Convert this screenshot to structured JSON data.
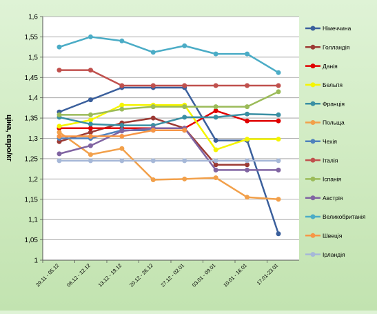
{
  "chart_data": {
    "type": "line",
    "title": "",
    "xlabel": "",
    "ylabel": "ціна, євро/кг",
    "ylim": [
      1,
      1.6
    ],
    "ytick_step": 0.05,
    "yticks": [
      "1",
      "1,05",
      "1,1",
      "1,15",
      "1,2",
      "1,25",
      "1,3",
      "1,35",
      "1,4",
      "1,45",
      "1,5",
      "1,55",
      "1,6"
    ],
    "grid": true,
    "legend_position": "right",
    "categories": [
      "29.11 - 05.12",
      "06.12 - 12.12",
      "13.12 - 19.12",
      "20.12 - 26.12",
      "27.12 - 02.01",
      "03.01 - 09.01",
      "10.01 - 16.01",
      "17.01-23.01"
    ],
    "series": [
      {
        "name": "Німеччина",
        "color": "#3a5f9c",
        "values": [
          1.365,
          1.395,
          1.425,
          1.425,
          1.425,
          1.295,
          1.295,
          1.065
        ]
      },
      {
        "name": "Голландія",
        "color": "#9c3a34",
        "values": [
          1.292,
          1.315,
          1.338,
          1.35,
          1.325,
          1.235,
          1.235,
          null
        ]
      },
      {
        "name": "Данія",
        "color": "#e00000",
        "values": [
          1.325,
          1.325,
          1.325,
          1.325,
          1.325,
          1.368,
          1.343,
          1.343
        ]
      },
      {
        "name": "Бельгія",
        "color": "#f5f500",
        "values": [
          1.33,
          1.345,
          1.382,
          1.382,
          1.382,
          1.272,
          1.298,
          1.298
        ]
      },
      {
        "name": "Франція",
        "color": "#3a8fa3",
        "values": [
          1.352,
          1.335,
          1.332,
          1.332,
          1.352,
          1.352,
          1.36,
          1.358
        ]
      },
      {
        "name": "Польща",
        "color": "#f2a04a",
        "values": [
          1.315,
          1.26,
          1.275,
          1.198,
          1.2,
          1.203,
          1.155,
          1.15
        ]
      },
      {
        "name": "Чехія",
        "color": "#4f81bd",
        "values": [
          1.3,
          1.3,
          1.32,
          1.32,
          1.32,
          null,
          null,
          null
        ]
      },
      {
        "name": "Італія",
        "color": "#c0504d",
        "values": [
          1.468,
          1.468,
          1.43,
          1.43,
          1.43,
          1.43,
          1.43,
          1.43
        ]
      },
      {
        "name": "Іспанія",
        "color": "#9bbb59",
        "values": [
          1.358,
          1.358,
          1.372,
          1.378,
          1.378,
          1.378,
          1.378,
          1.415
        ]
      },
      {
        "name": "Австрія",
        "color": "#8064a2",
        "values": [
          1.262,
          1.282,
          1.318,
          1.325,
          1.325,
          1.222,
          1.222,
          1.222
        ]
      },
      {
        "name": "Великобританія",
        "color": "#4bacc6",
        "values": [
          1.525,
          1.55,
          1.54,
          1.512,
          1.528,
          1.508,
          1.508,
          1.462
        ]
      },
      {
        "name": "Швеція",
        "color": "#f79646",
        "values": [
          1.305,
          1.305,
          1.305,
          1.32,
          1.32,
          null,
          null,
          null
        ]
      },
      {
        "name": "Ірландія",
        "color": "#a6b8d8",
        "values": [
          1.245,
          1.245,
          1.245,
          1.245,
          1.245,
          1.245,
          1.245,
          1.245
        ]
      }
    ]
  }
}
